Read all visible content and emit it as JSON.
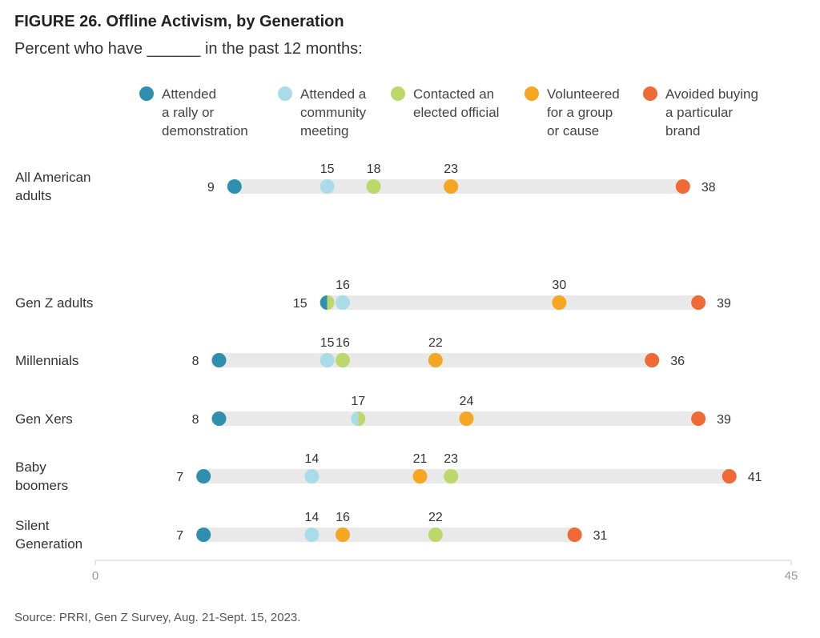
{
  "figure": {
    "title": "FIGURE 26. Offline Activism, by Generation",
    "subtitle": "Percent who have ______ in the past 12 months:",
    "source": "Source: PRRI, Gen Z Survey, Aug. 21-Sept. 15, 2023."
  },
  "colors": {
    "rally": "#2e8fae",
    "community": "#a8dce8",
    "official": "#bcd86a",
    "volunteer": "#f5a623",
    "boycott": "#ef6a35",
    "track": "#e8e9e8"
  },
  "chart_data": {
    "type": "dot-plot",
    "axis": {
      "min": 0,
      "max": 45,
      "tick_labels": [
        "0",
        "45"
      ]
    },
    "series": [
      {
        "key": "rally",
        "name": "Attended\na rally or\ndemonstration"
      },
      {
        "key": "community",
        "name": "Attended a\ncommunity\nmeeting"
      },
      {
        "key": "official",
        "name": "Contacted an\nelected official"
      },
      {
        "key": "volunteer",
        "name": "Volunteered\nfor a group\nor cause"
      },
      {
        "key": "boycott",
        "name": "Avoided buying\na particular\nbrand"
      }
    ],
    "rows": [
      {
        "group": "All American\nadults",
        "values": {
          "rally": 9,
          "community": 15,
          "official": 18,
          "volunteer": 23,
          "boycott": 38
        }
      },
      {
        "group": "Gen Z adults",
        "values": {
          "rally": 15,
          "community": 16,
          "official": 15,
          "volunteer": 30,
          "boycott": 39
        }
      },
      {
        "group": "Millennials",
        "values": {
          "rally": 8,
          "community": 15,
          "official": 16,
          "volunteer": 22,
          "boycott": 36
        }
      },
      {
        "group": "Gen Xers",
        "values": {
          "rally": 8,
          "community": 17,
          "official": 17,
          "volunteer": 24,
          "boycott": 39
        }
      },
      {
        "group": "Baby\nboomers",
        "values": {
          "rally": 7,
          "community": 14,
          "official": 23,
          "volunteer": 21,
          "boycott": 41
        }
      },
      {
        "group": "Silent\nGeneration",
        "values": {
          "rally": 7,
          "community": 14,
          "official": 22,
          "volunteer": 16,
          "boycott": 31
        }
      }
    ],
    "labels": [
      {
        "row": 0,
        "value": 9,
        "text": "9",
        "pos": "left"
      },
      {
        "row": 0,
        "value": 15,
        "text": "15",
        "pos": "above"
      },
      {
        "row": 0,
        "value": 18,
        "text": "18",
        "pos": "above"
      },
      {
        "row": 0,
        "value": 23,
        "text": "23",
        "pos": "above"
      },
      {
        "row": 0,
        "value": 38,
        "text": "38",
        "pos": "right"
      },
      {
        "row": 1,
        "value": 15,
        "text": "15",
        "pos": "left"
      },
      {
        "row": 1,
        "value": 16,
        "text": "16",
        "pos": "above"
      },
      {
        "row": 1,
        "value": 30,
        "text": "30",
        "pos": "above"
      },
      {
        "row": 1,
        "value": 39,
        "text": "39",
        "pos": "right"
      },
      {
        "row": 2,
        "value": 8,
        "text": "8",
        "pos": "left"
      },
      {
        "row": 2,
        "value": 15,
        "text": "15",
        "pos": "above"
      },
      {
        "row": 2,
        "value": 16,
        "text": "16",
        "pos": "above"
      },
      {
        "row": 2,
        "value": 22,
        "text": "22",
        "pos": "above"
      },
      {
        "row": 2,
        "value": 36,
        "text": "36",
        "pos": "right"
      },
      {
        "row": 3,
        "value": 8,
        "text": "8",
        "pos": "left"
      },
      {
        "row": 3,
        "value": 17,
        "text": "17",
        "pos": "above"
      },
      {
        "row": 3,
        "value": 24,
        "text": "24",
        "pos": "above"
      },
      {
        "row": 3,
        "value": 39,
        "text": "39",
        "pos": "right"
      },
      {
        "row": 4,
        "value": 7,
        "text": "7",
        "pos": "left"
      },
      {
        "row": 4,
        "value": 14,
        "text": "14",
        "pos": "above"
      },
      {
        "row": 4,
        "value": 21,
        "text": "21",
        "pos": "above"
      },
      {
        "row": 4,
        "value": 23,
        "text": "23",
        "pos": "above"
      },
      {
        "row": 4,
        "value": 41,
        "text": "41",
        "pos": "right"
      },
      {
        "row": 5,
        "value": 7,
        "text": "7",
        "pos": "left"
      },
      {
        "row": 5,
        "value": 14,
        "text": "14",
        "pos": "above"
      },
      {
        "row": 5,
        "value": 16,
        "text": "16",
        "pos": "above"
      },
      {
        "row": 5,
        "value": 22,
        "text": "22",
        "pos": "above"
      },
      {
        "row": 5,
        "value": 31,
        "text": "31",
        "pos": "right"
      }
    ]
  }
}
